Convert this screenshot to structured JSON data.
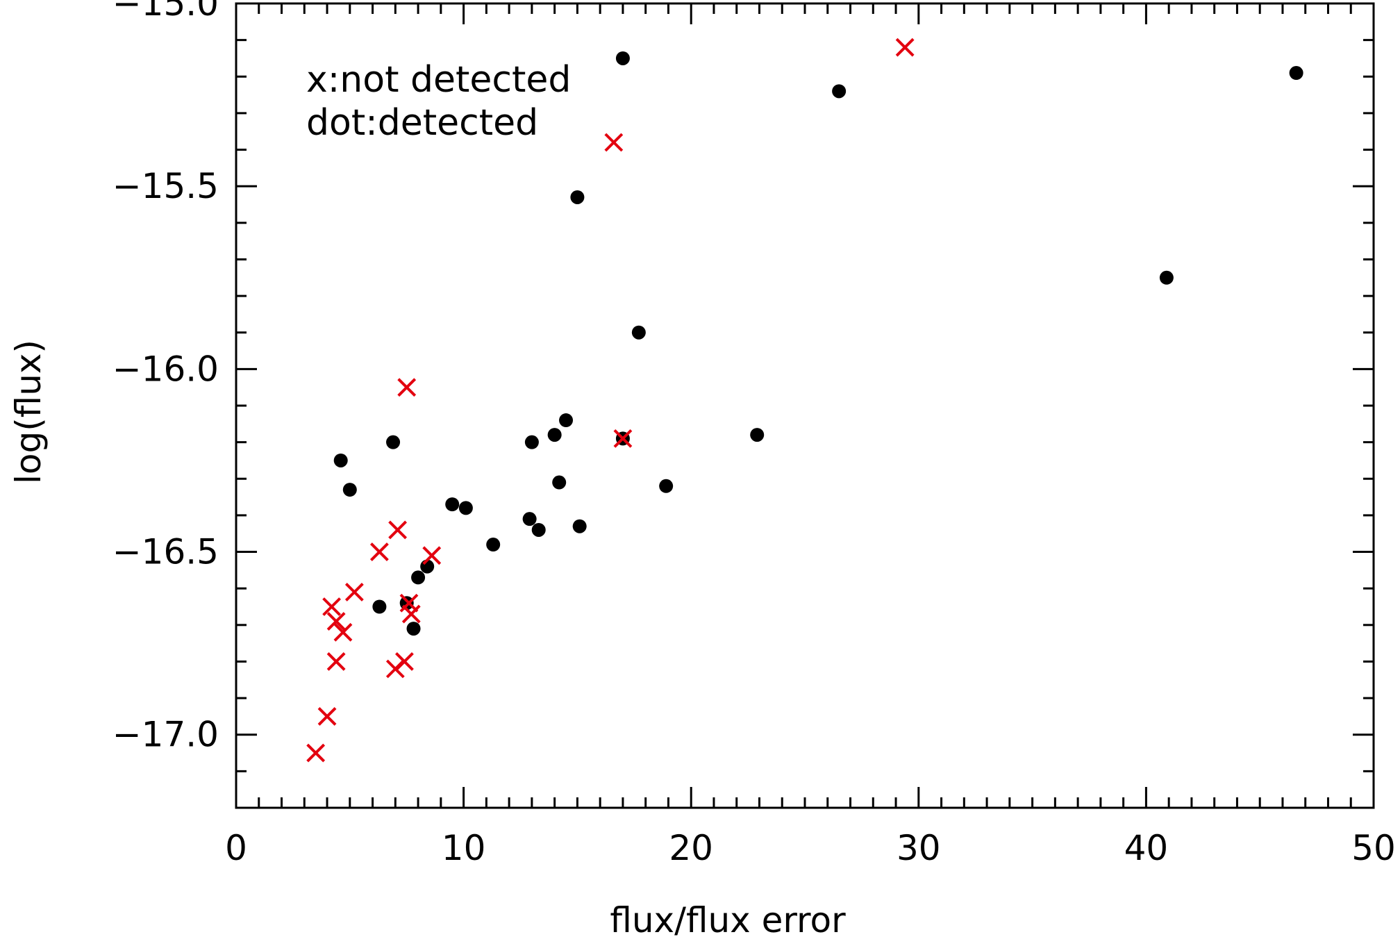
{
  "chart_data": {
    "type": "scatter",
    "title": "",
    "xlabel": "flux/flux error",
    "ylabel": "log(flux)",
    "xlim": [
      0,
      50
    ],
    "ylim": [
      -17.2,
      -15.0
    ],
    "xticks": [
      0,
      10,
      20,
      30,
      40,
      50
    ],
    "xtick_labels": [
      "0",
      "10",
      "20",
      "30",
      "40",
      "50"
    ],
    "yticks": [
      -17.0,
      -16.5,
      -16.0,
      -15.5,
      -15.0
    ],
    "ytick_labels": [
      "−17.0",
      "−16.5",
      "−16.0",
      "−15.5",
      "−15.0"
    ],
    "grid": false,
    "legend_placement": "top-left",
    "legend": [
      "x:not detected",
      "dot:detected"
    ],
    "series": [
      {
        "marker": "dot",
        "color": "#000000",
        "points": [
          [
            17.0,
            -15.15
          ],
          [
            26.5,
            -15.24
          ],
          [
            46.6,
            -15.19
          ],
          [
            15.0,
            -15.53
          ],
          [
            40.9,
            -15.75
          ],
          [
            17.7,
            -15.9
          ],
          [
            22.9,
            -16.18
          ],
          [
            14.5,
            -16.14
          ],
          [
            13.0,
            -16.2
          ],
          [
            14.0,
            -16.18
          ],
          [
            17.0,
            -16.19
          ],
          [
            6.9,
            -16.2
          ],
          [
            4.6,
            -16.25
          ],
          [
            5.0,
            -16.33
          ],
          [
            14.2,
            -16.31
          ],
          [
            18.9,
            -16.32
          ],
          [
            9.5,
            -16.37
          ],
          [
            10.1,
            -16.38
          ],
          [
            12.9,
            -16.41
          ],
          [
            13.3,
            -16.44
          ],
          [
            15.1,
            -16.43
          ],
          [
            11.3,
            -16.48
          ],
          [
            8.4,
            -16.54
          ],
          [
            8.0,
            -16.57
          ],
          [
            6.3,
            -16.65
          ],
          [
            7.5,
            -16.64
          ],
          [
            7.8,
            -16.71
          ]
        ]
      },
      {
        "marker": "x",
        "color": "#e3000f",
        "points": [
          [
            29.4,
            -15.12
          ],
          [
            16.6,
            -15.38
          ],
          [
            7.5,
            -16.05
          ],
          [
            17.0,
            -16.19
          ],
          [
            7.1,
            -16.44
          ],
          [
            6.3,
            -16.5
          ],
          [
            8.6,
            -16.51
          ],
          [
            5.2,
            -16.61
          ],
          [
            4.2,
            -16.65
          ],
          [
            7.6,
            -16.64
          ],
          [
            4.4,
            -16.69
          ],
          [
            4.7,
            -16.72
          ],
          [
            7.7,
            -16.67
          ],
          [
            4.4,
            -16.8
          ],
          [
            7.4,
            -16.8
          ],
          [
            7.0,
            -16.82
          ],
          [
            4.0,
            -16.95
          ],
          [
            3.5,
            -17.05
          ]
        ]
      }
    ]
  }
}
